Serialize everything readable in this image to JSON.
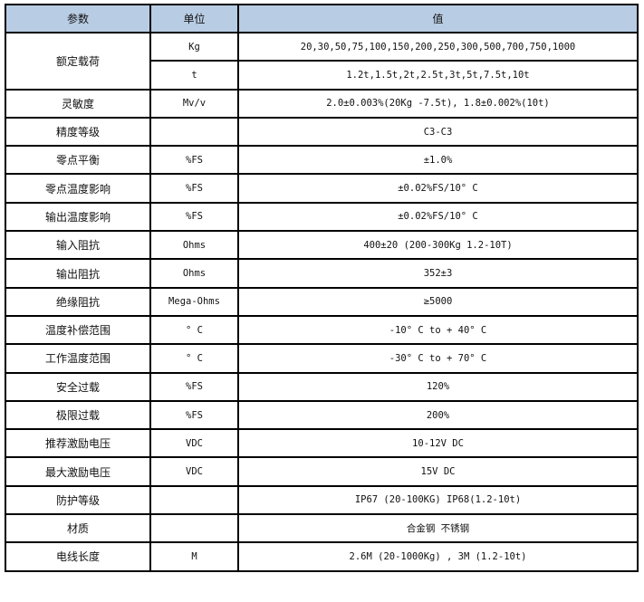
{
  "headers": {
    "param": "参数",
    "unit": "单位",
    "value": "值"
  },
  "rated_load": {
    "param": "额定载荷",
    "rows": [
      {
        "unit": "Kg",
        "value": "20,30,50,75,100,150,200,250,300,500,700,750,1000"
      },
      {
        "unit": "t",
        "value": "1.2t,1.5t,2t,2.5t,3t,5t,7.5t,10t"
      }
    ]
  },
  "rows": [
    {
      "param": "灵敏度",
      "unit": "Mv/v",
      "value": "2.0±0.003%(20Kg -7.5t), 1.8±0.002%(10t)"
    },
    {
      "param": "精度等级",
      "unit": "",
      "value": "C3-C3"
    },
    {
      "param": "零点平衡",
      "unit": "%FS",
      "value": "±1.0%"
    },
    {
      "param": "零点温度影响",
      "unit": "%FS",
      "value": "±0.02%FS/10° C"
    },
    {
      "param": "输出温度影响",
      "unit": "%FS",
      "value": "±0.02%FS/10° C"
    },
    {
      "param": "输入阻抗",
      "unit": "Ohms",
      "value": "400±20 (200-300Kg 1.2-10T)"
    },
    {
      "param": "输出阻抗",
      "unit": "Ohms",
      "value": "352±3"
    },
    {
      "param": "绝缘阻抗",
      "unit": "Mega-Ohms",
      "value": "≥5000"
    },
    {
      "param": "温度补偿范围",
      "unit": "° C",
      "value": "-10° C to + 40° C"
    },
    {
      "param": "工作温度范围",
      "unit": "° C",
      "value": "-30° C to + 70° C"
    },
    {
      "param": "安全过载",
      "unit": "%FS",
      "value": "120%"
    },
    {
      "param": "极限过载",
      "unit": "%FS",
      "value": "200%"
    },
    {
      "param": "推荐激励电压",
      "unit": "VDC",
      "value": "10-12V DC"
    },
    {
      "param": "最大激励电压",
      "unit": "VDC",
      "value": "15V DC"
    },
    {
      "param": "防护等级",
      "unit": "",
      "value": "IP67 (20-100KG) IP68(1.2-10t)"
    },
    {
      "param": "材质",
      "unit": "",
      "value": "合金钢 不锈钢"
    },
    {
      "param": "电线长度",
      "unit": "M",
      "value": "2.6M (20-1000Kg) , 3M (1.2-10t)"
    }
  ]
}
